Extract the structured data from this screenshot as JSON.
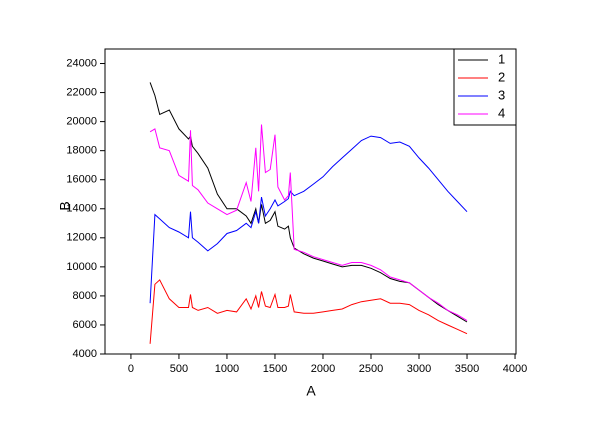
{
  "chart_data": {
    "type": "line",
    "xlabel": "A",
    "ylabel": "B",
    "x": [
      200,
      250,
      300,
      400,
      500,
      600,
      620,
      640,
      700,
      800,
      900,
      1000,
      1100,
      1200,
      1250,
      1300,
      1330,
      1360,
      1400,
      1450,
      1500,
      1530,
      1600,
      1640,
      1660,
      1700,
      1800,
      1900,
      2000,
      2100,
      2200,
      2300,
      2400,
      2500,
      2600,
      2700,
      2800,
      2900,
      3000,
      3100,
      3200,
      3300,
      3400,
      3500
    ],
    "series": [
      {
        "name": "1",
        "color": "#000000",
        "values": [
          22700,
          21800,
          20500,
          20800,
          19500,
          18800,
          19000,
          18300,
          17800,
          16800,
          15000,
          14000,
          14000,
          13500,
          13000,
          14000,
          13000,
          14300,
          13000,
          13200,
          13800,
          12800,
          12600,
          12800,
          12000,
          11300,
          10900,
          10600,
          10400,
          10200,
          10000,
          10100,
          10100,
          9900,
          9600,
          9200,
          9000,
          8900,
          8400,
          7900,
          7400,
          7000,
          6600,
          6200
        ]
      },
      {
        "name": "2",
        "color": "#ff0000",
        "values": [
          4700,
          8800,
          9100,
          7800,
          7200,
          7200,
          8100,
          7200,
          7000,
          7200,
          6800,
          7000,
          6900,
          7800,
          7100,
          8000,
          7200,
          8300,
          7300,
          7200,
          8100,
          7200,
          7200,
          7300,
          8100,
          6900,
          6800,
          6800,
          6900,
          7000,
          7100,
          7400,
          7600,
          7700,
          7800,
          7500,
          7500,
          7400,
          7000,
          6700,
          6300,
          6000,
          5700,
          5400
        ]
      },
      {
        "name": "3",
        "color": "#0000ff",
        "values": [
          7500,
          13600,
          13300,
          12700,
          12400,
          12000,
          13800,
          12000,
          11700,
          11100,
          11600,
          12300,
          12500,
          13000,
          12700,
          13800,
          13000,
          14800,
          13500,
          14000,
          14600,
          14200,
          14500,
          14700,
          15200,
          14900,
          15200,
          15700,
          16200,
          16900,
          17500,
          18100,
          18700,
          19000,
          18900,
          18500,
          18600,
          18300,
          17500,
          16800,
          16000,
          15200,
          14500,
          13800
        ]
      },
      {
        "name": "4",
        "color": "#ff00ff",
        "values": [
          19300,
          19500,
          18200,
          18000,
          16300,
          15900,
          19400,
          15600,
          15300,
          14400,
          14000,
          13600,
          13900,
          15800,
          14500,
          18200,
          15200,
          19800,
          16500,
          16700,
          19100,
          15500,
          14600,
          14900,
          16500,
          11200,
          11000,
          10700,
          10500,
          10300,
          10100,
          10300,
          10300,
          10100,
          9800,
          9300,
          9100,
          8900,
          8400,
          7900,
          7500,
          7000,
          6700,
          6300
        ]
      }
    ],
    "xlim": [
      -270,
      4010
    ],
    "xticks": [
      0,
      500,
      1000,
      1500,
      2000,
      2500,
      3000,
      3500,
      4000
    ],
    "ylim": [
      4000,
      25000
    ],
    "yticks": [
      4000,
      6000,
      8000,
      10000,
      12000,
      14000,
      16000,
      18000,
      20000,
      22000,
      24000
    ],
    "legend": "upper right"
  }
}
